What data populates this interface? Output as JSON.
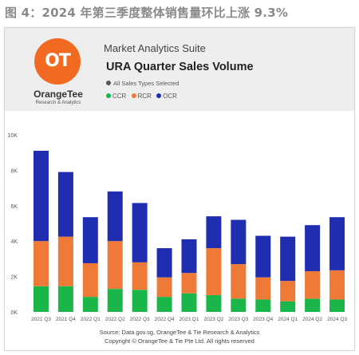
{
  "caption": "图 4：2024 年第三季度整体销售量环比上涨 9.3%",
  "header": {
    "logo_text": "OT",
    "brand": "OrangeTee",
    "brand_sub": "Research & Analytics",
    "app_title": "Market Analytics Suite",
    "chart_title": "URA Quarter Sales Volume",
    "filter_label": "All Sales Types Selected"
  },
  "legend": [
    {
      "label": "CCR",
      "color": "#1ab64a"
    },
    {
      "label": "RCR",
      "color": "#ef7a38"
    },
    {
      "label": "OCR",
      "color": "#1f2db0"
    }
  ],
  "source": {
    "line1": "Source: Data.gov.sg, OrangeTee & Tie Research & Analytics",
    "line2": "Copyright © OrangeTee & Tie Pte Ltd. All rights reserved"
  },
  "chart_data": {
    "type": "bar",
    "stacked": true,
    "categories": [
      "2021 Q3",
      "2021 Q4",
      "2022 Q1",
      "2022 Q2",
      "2022 Q3",
      "2022 Q4",
      "2023 Q1",
      "2023 Q2",
      "2023 Q3",
      "2023 Q4",
      "2024 Q1",
      "2024 Q2",
      "2024 Q3"
    ],
    "series": [
      {
        "name": "CCR",
        "color": "#1ab64a",
        "values": [
          1450,
          1450,
          850,
          1300,
          1250,
          850,
          1050,
          950,
          750,
          700,
          600,
          750,
          700
        ]
      },
      {
        "name": "RCR",
        "color": "#ef7a38",
        "values": [
          2550,
          2800,
          1900,
          2700,
          1550,
          1100,
          1150,
          2650,
          1950,
          1250,
          1150,
          1550,
          1650
        ]
      },
      {
        "name": "OCR",
        "color": "#1f2db0",
        "values": [
          5100,
          3650,
          2600,
          2800,
          3350,
          1650,
          1900,
          1800,
          2500,
          2350,
          2500,
          2600,
          3000
        ]
      }
    ],
    "yticks": [
      "0K",
      "2K",
      "4K",
      "6K",
      "8K",
      "10K"
    ],
    "ylim": [
      0,
      10000
    ],
    "grid": false
  }
}
